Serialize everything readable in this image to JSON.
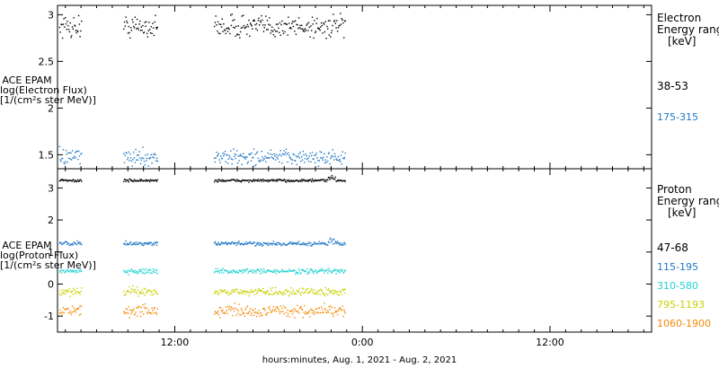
{
  "x_axis_title": "hours:minutes, Aug.  1, 2021 - Aug.  2, 2021",
  "panels": [
    {
      "ylabel": [
        "ACE EPAM",
        "log(Electron Flux)",
        "[1/(cm²s ster MeV)]"
      ],
      "legend_title": [
        "Electron",
        "Energy range",
        "[keV]"
      ]
    },
    {
      "ylabel": [
        "ACE EPAM",
        "log(Proton Flux)",
        "[1/(cm²s ster MeV)]"
      ],
      "legend_title": [
        "Proton",
        "Energy range",
        "[keV]"
      ]
    }
  ],
  "chart_data": [
    {
      "type": "scatter",
      "title": "",
      "xlabel": "hours:minutes, Aug.  1, 2021 - Aug.  2, 2021",
      "ylabel": "ACE EPAM log(Electron Flux) [1/(cm²s ster MeV)]",
      "x_unit": "hours since 2021-08-01 00:00",
      "xlim": [
        4.5,
        42.5
      ],
      "x_ticks": [
        {
          "value": 12,
          "label": "12:00"
        },
        {
          "value": 24,
          "label": "0:00"
        },
        {
          "value": 36,
          "label": "12:00"
        }
      ],
      "ylim": [
        1.35,
        3.1
      ],
      "y_ticks": [
        1.5,
        2.0,
        2.5,
        3.0
      ],
      "data_segments": [
        [
          4.6,
          6.0
        ],
        [
          8.7,
          10.9
        ],
        [
          14.5,
          22.9
        ]
      ],
      "series": [
        {
          "name": "38-53",
          "color": "#000000",
          "mean": 2.88,
          "scatter": 0.06
        },
        {
          "name": "175-315",
          "color": "#1f78c8",
          "mean": 1.48,
          "scatter": 0.04
        }
      ]
    },
    {
      "type": "scatter",
      "title": "",
      "xlabel": "hours:minutes, Aug.  1, 2021 - Aug.  2, 2021",
      "ylabel": "ACE EPAM log(Proton Flux) [1/(cm²s ster MeV)]",
      "x_unit": "hours since 2021-08-01 00:00",
      "xlim": [
        4.5,
        42.5
      ],
      "x_ticks": [
        {
          "value": 12,
          "label": "12:00"
        },
        {
          "value": 24,
          "label": "0:00"
        },
        {
          "value": 36,
          "label": "12:00"
        }
      ],
      "ylim": [
        -1.5,
        3.6
      ],
      "y_ticks": [
        -1,
        0,
        1,
        2,
        3
      ],
      "data_segments": [
        [
          4.6,
          6.0
        ],
        [
          8.7,
          10.9
        ],
        [
          14.5,
          22.9
        ]
      ],
      "series": [
        {
          "name": "47-68",
          "color": "#000000",
          "mean": 3.25,
          "scatter": 0.02
        },
        {
          "name": "115-195",
          "color": "#1f78c8",
          "mean": 1.28,
          "scatter": 0.03
        },
        {
          "name": "310-580",
          "color": "#22d3d3",
          "mean": 0.42,
          "scatter": 0.04
        },
        {
          "name": "795-1193",
          "color": "#c8d200",
          "mean": -0.22,
          "scatter": 0.06
        },
        {
          "name": "1060-1900",
          "color": "#f58a07",
          "mean": -0.82,
          "scatter": 0.09
        }
      ]
    }
  ]
}
